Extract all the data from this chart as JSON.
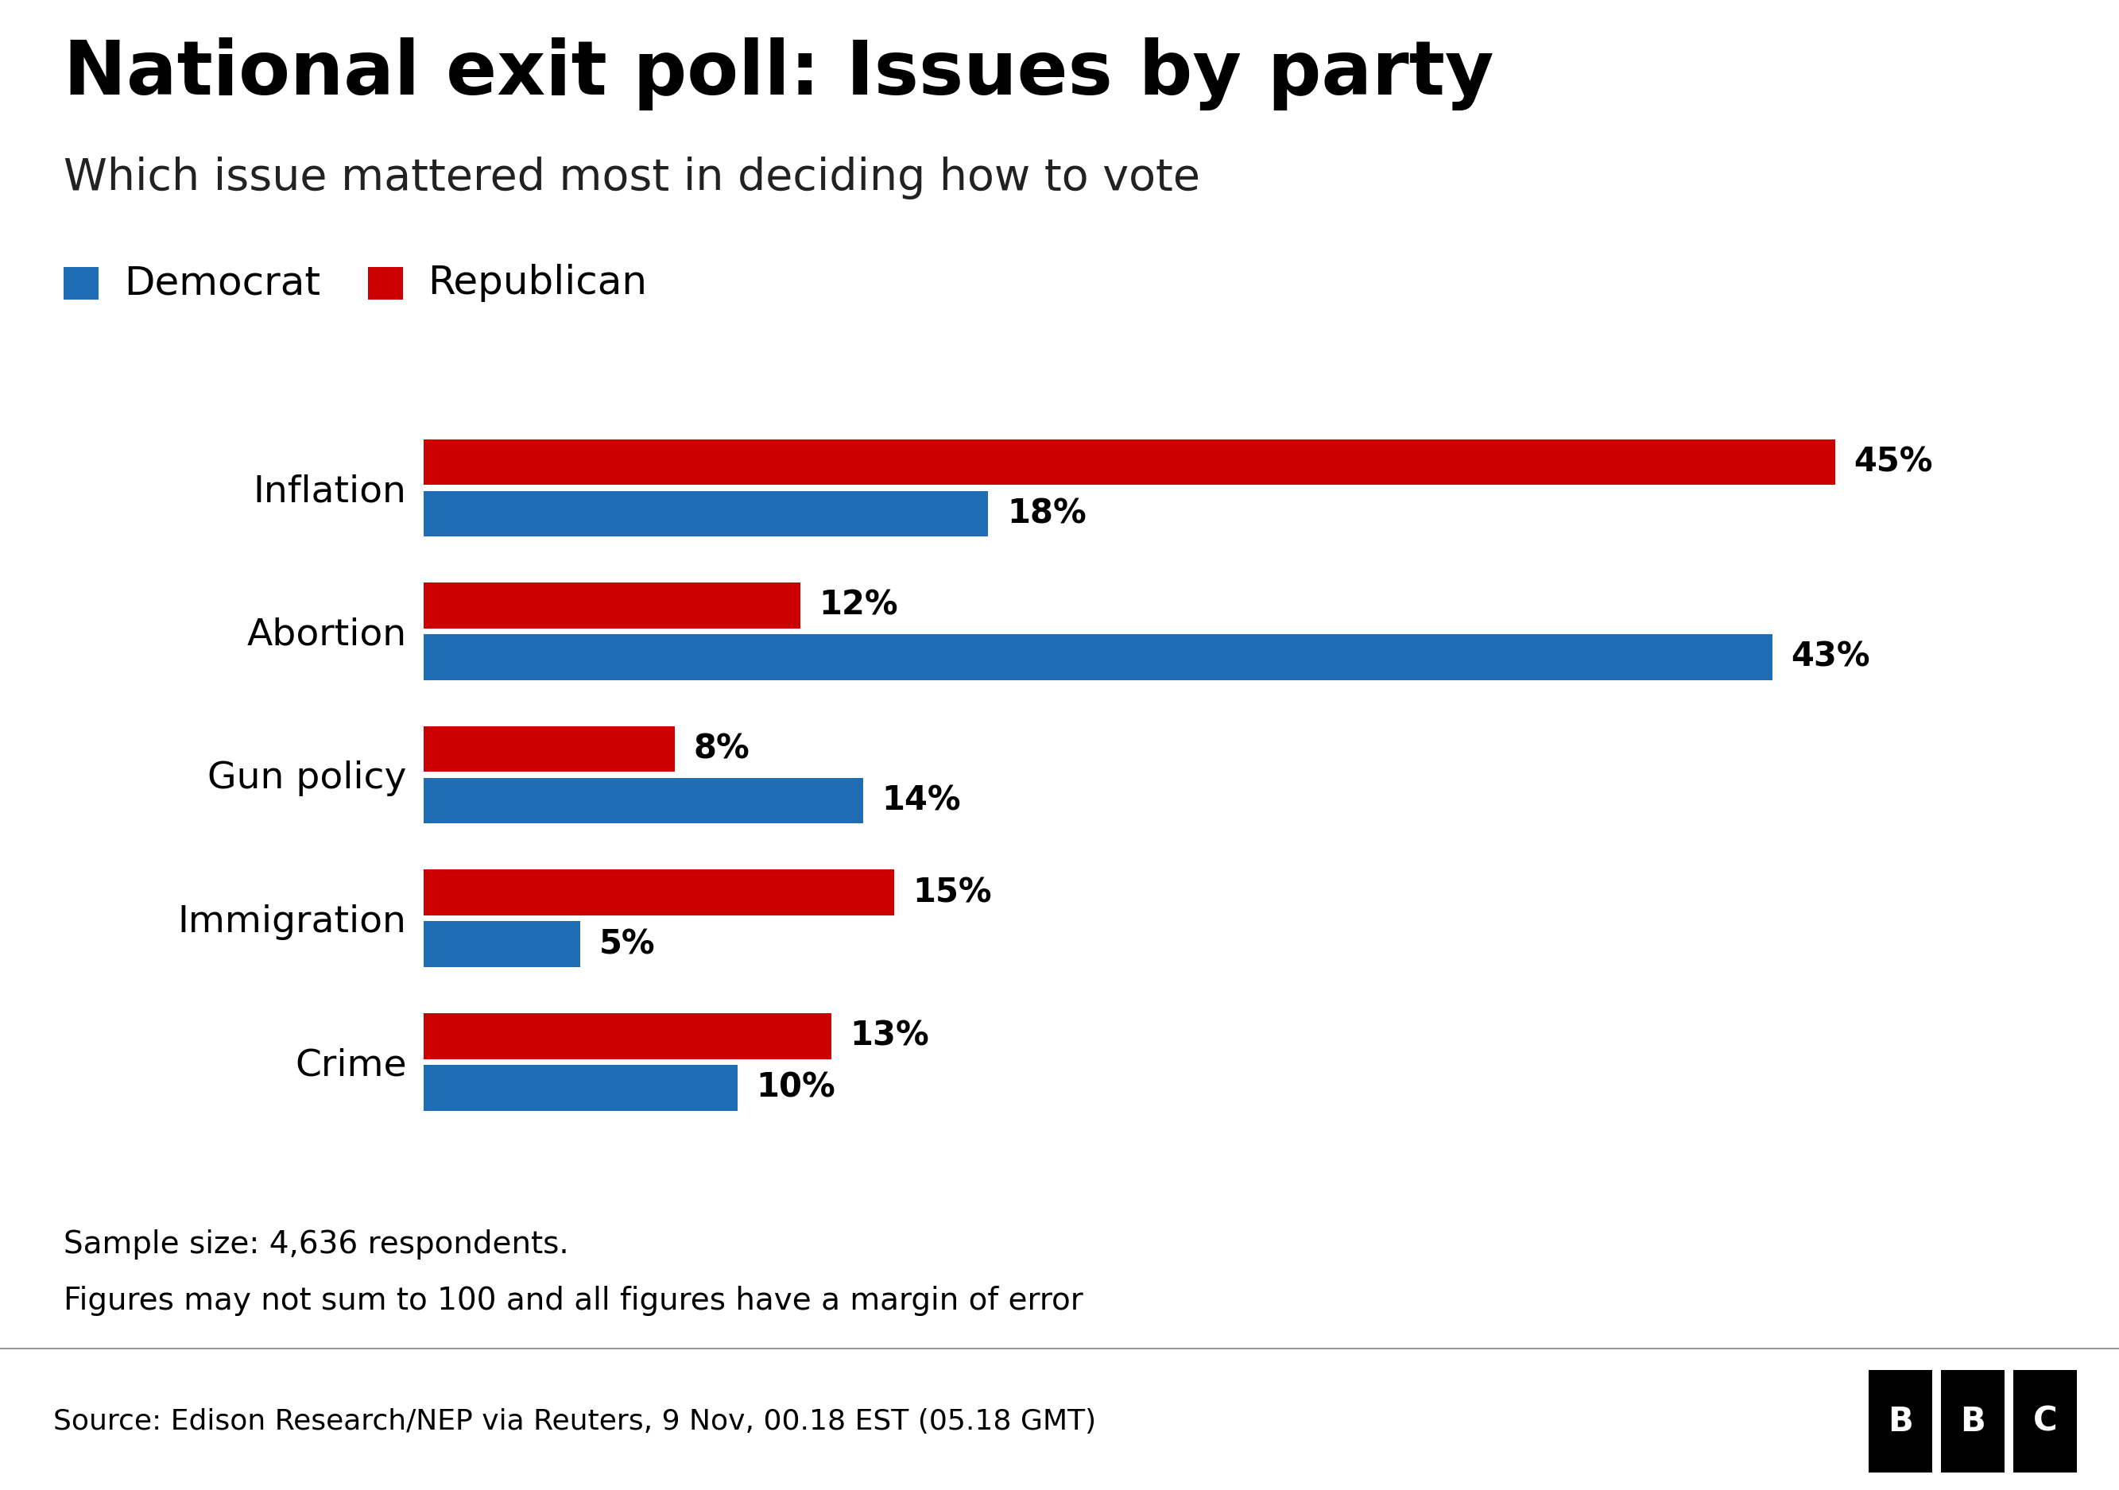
{
  "title": "National exit poll: Issues by party",
  "subtitle": "Which issue mattered most in deciding how to vote",
  "categories": [
    "Inflation",
    "Abortion",
    "Gun policy",
    "Immigration",
    "Crime"
  ],
  "republican": [
    45,
    12,
    8,
    15,
    13
  ],
  "democrat": [
    18,
    43,
    14,
    5,
    10
  ],
  "republican_color": "#cc0000",
  "democrat_color": "#1f6db5",
  "background_color": "#ffffff",
  "footnote1": "Sample size: 4,636 respondents.",
  "footnote2": "Figures may not sum to 100 and all figures have a margin of error",
  "source": "Source: Edison Research/NEP via Reuters, 9 Nov, 00.18 EST (05.18 GMT)",
  "legend_democrat": "Democrat",
  "legend_republican": "Republican",
  "bar_height": 0.32,
  "bar_gap": 0.04,
  "xlim": [
    0,
    50
  ],
  "title_fontsize": 68,
  "subtitle_fontsize": 40,
  "legend_fontsize": 36,
  "label_fontsize": 30,
  "ytick_fontsize": 34,
  "footnote_fontsize": 28,
  "source_fontsize": 26
}
